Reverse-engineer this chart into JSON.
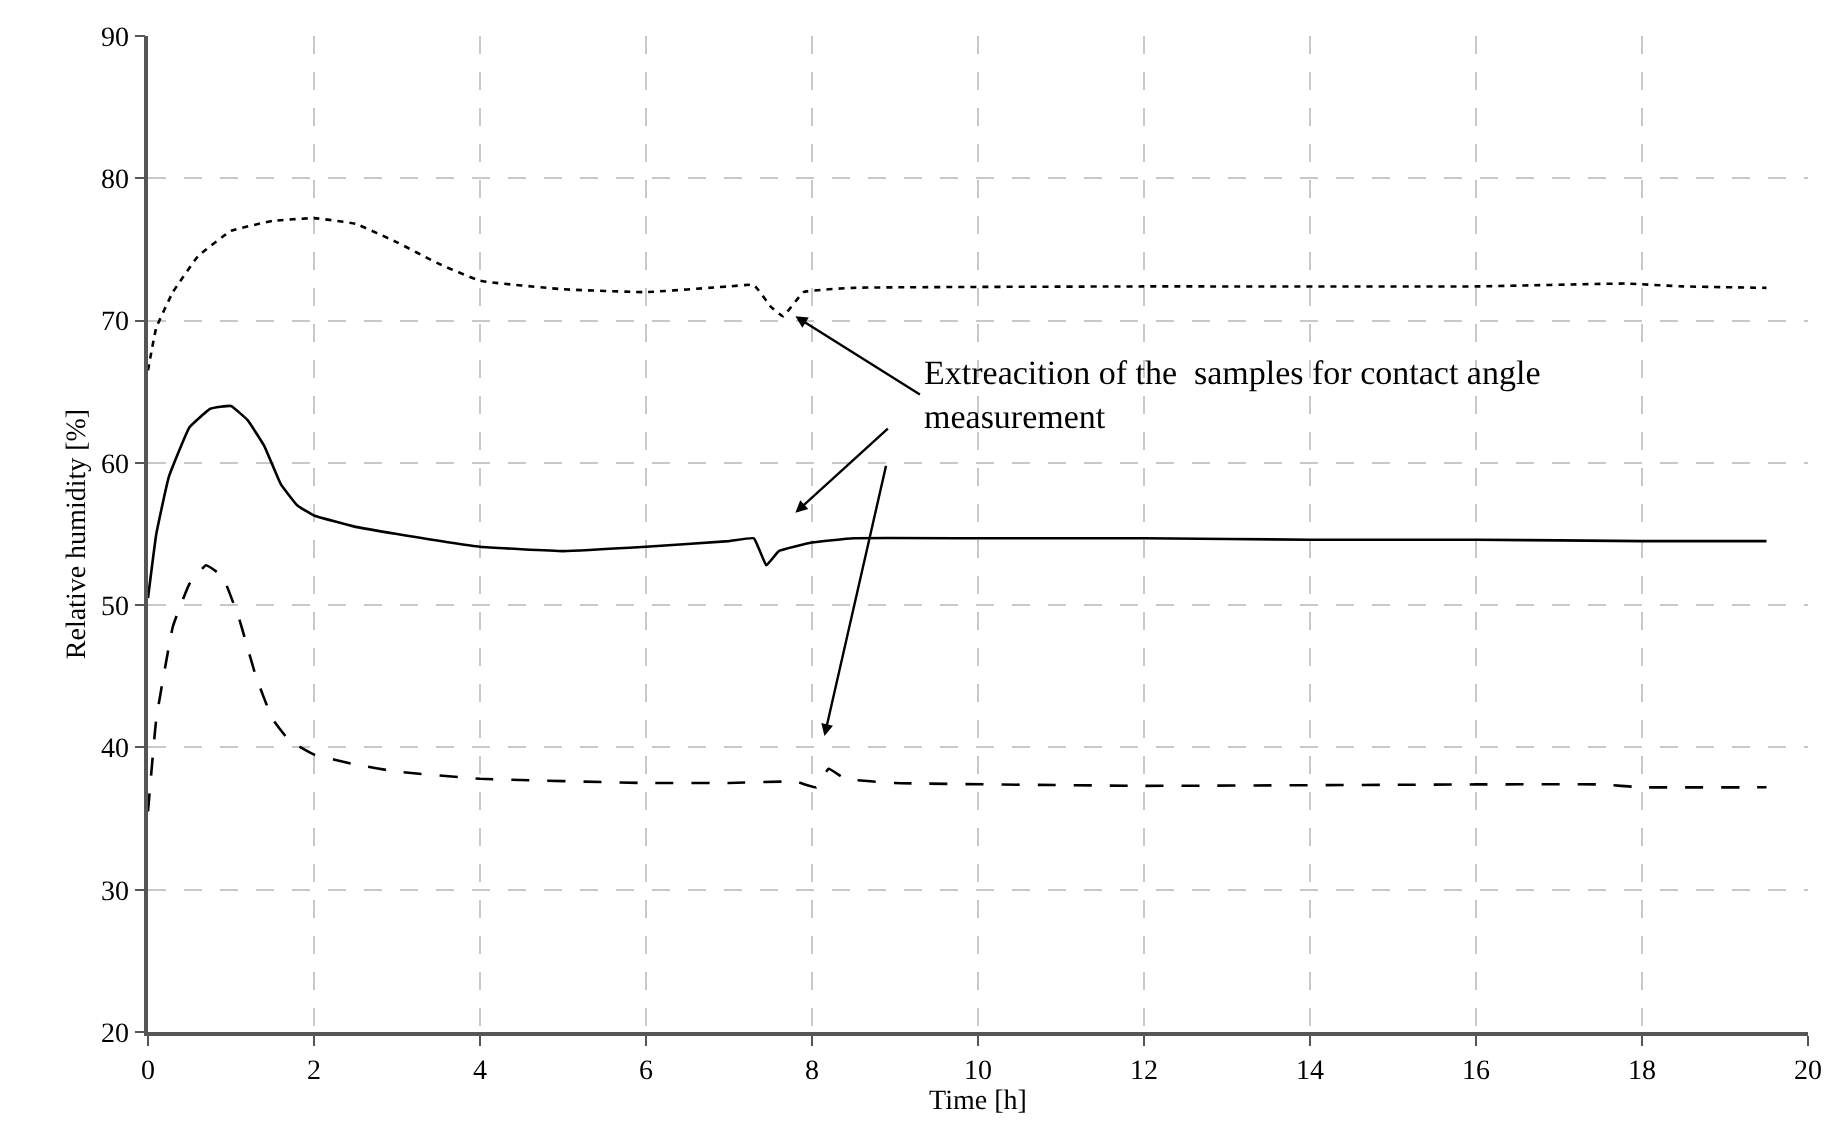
{
  "chart_data": {
    "type": "line",
    "xlabel": "Time [h]",
    "ylabel": "Relative humidity [%]",
    "xlim": [
      0,
      20
    ],
    "xticks": [
      0,
      2,
      4,
      6,
      8,
      10,
      12,
      14,
      16,
      18,
      20
    ],
    "ylim": [
      20,
      90
    ],
    "yticks": [
      20,
      30,
      40,
      50,
      60,
      70,
      80,
      90
    ],
    "grid": true,
    "legend": false,
    "series": [
      {
        "color": "#000000",
        "line_style": "dotted",
        "x": [
          0,
          0.1,
          0.3,
          0.6,
          1,
          1.5,
          2,
          2.5,
          3,
          3.5,
          4,
          5,
          6,
          7,
          7.3,
          7.5,
          7.65,
          7.9,
          8.5,
          12,
          16,
          17.8,
          18.5,
          19.5
        ],
        "values": [
          66.5,
          69.5,
          72,
          74.5,
          76.3,
          77,
          77.2,
          76.8,
          75.5,
          74,
          72.8,
          72.2,
          72,
          72.4,
          72.5,
          71,
          70.3,
          72,
          72.3,
          72.4,
          72.4,
          72.6,
          72.4,
          72.3
        ]
      },
      {
        "color": "#000000",
        "line_style": "solid",
        "x": [
          0,
          0.1,
          0.25,
          0.5,
          0.75,
          1,
          1.2,
          1.4,
          1.6,
          1.8,
          2,
          2.5,
          3,
          4,
          5,
          6,
          7,
          7.3,
          7.45,
          7.6,
          8,
          8.5,
          10,
          12,
          14,
          16,
          18,
          19.5
        ],
        "values": [
          50.5,
          55,
          59,
          62.5,
          63.8,
          64,
          63,
          61.2,
          58.5,
          57,
          56.3,
          55.5,
          55,
          54.1,
          53.8,
          54.1,
          54.5,
          54.7,
          52.8,
          53.8,
          54.4,
          54.7,
          54.7,
          54.7,
          54.6,
          54.6,
          54.5,
          54.5
        ]
      },
      {
        "color": "#000000",
        "line_style": "dashed",
        "x": [
          0,
          0.1,
          0.3,
          0.5,
          0.7,
          0.9,
          1.1,
          1.3,
          1.5,
          1.7,
          2,
          2.5,
          3,
          4,
          6,
          7,
          7.8,
          8.05,
          8.2,
          8.4,
          9,
          12,
          16,
          17.5,
          18,
          19.5
        ],
        "values": [
          35.5,
          42,
          48.5,
          51.5,
          52.8,
          52,
          49,
          45,
          42,
          40.5,
          39.5,
          38.8,
          38.3,
          37.8,
          37.5,
          37.5,
          37.6,
          37.2,
          38.5,
          37.8,
          37.5,
          37.3,
          37.4,
          37.4,
          37.2,
          37.2
        ]
      }
    ],
    "annotations": [
      {
        "text": "Extreacition of the  samples for contact angle measurement",
        "x": 7.8,
        "y": 70.3
      }
    ]
  }
}
